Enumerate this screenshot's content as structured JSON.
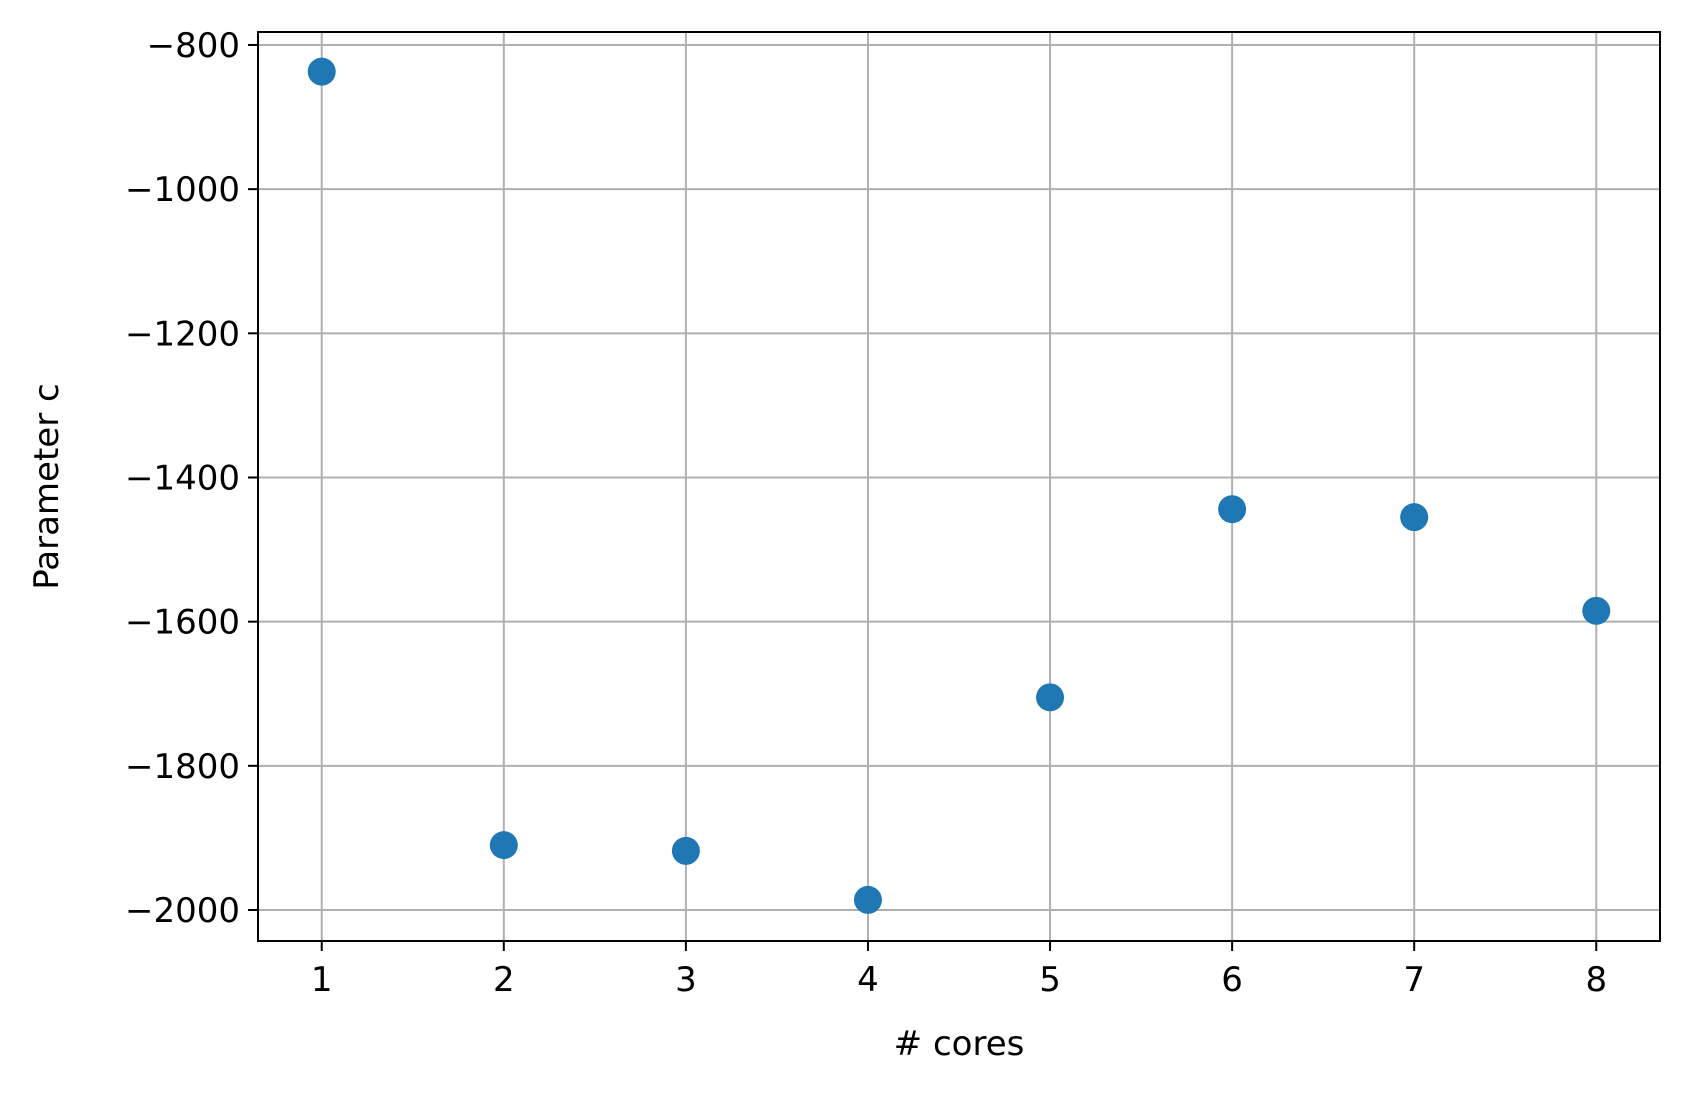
{
  "chart_data": {
    "type": "scatter",
    "title": "",
    "xlabel": "# cores",
    "ylabel": "Parameter c",
    "xlim": [
      0.65,
      8.35
    ],
    "ylim": [
      -2043,
      -782
    ],
    "x_ticks": [
      1,
      2,
      3,
      4,
      5,
      6,
      7,
      8
    ],
    "y_ticks": [
      -800,
      -1000,
      -1200,
      -1400,
      -1600,
      -1800,
      -2000
    ],
    "x_tick_labels": [
      "1",
      "2",
      "3",
      "4",
      "5",
      "6",
      "7",
      "8"
    ],
    "y_tick_labels": [
      "−800",
      "−1000",
      "−1200",
      "−1400",
      "−1600",
      "−1800",
      "−2000"
    ],
    "grid": true,
    "legend": "none",
    "series": [
      {
        "color": "#1f77b4",
        "x": [
          1,
          2,
          3,
          4,
          5,
          6,
          7,
          8
        ],
        "y": [
          -837,
          -1910,
          -1918,
          -1986,
          -1705,
          -1444,
          -1455,
          -1585
        ]
      }
    ]
  }
}
